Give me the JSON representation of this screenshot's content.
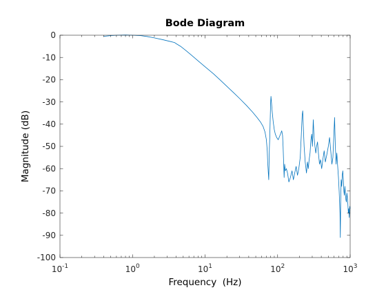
{
  "chart_data": {
    "type": "line",
    "title": "Bode Diagram",
    "xlabel": "Frequency  (Hz)",
    "ylabel": "Magnitude (dB)",
    "xscale": "log",
    "xlim": [
      0.1,
      1000
    ],
    "ylim": [
      -100,
      0
    ],
    "grid": false,
    "box": true,
    "x_ticks": [
      {
        "value": 0.1,
        "base": "10",
        "exp": "-1"
      },
      {
        "value": 1,
        "base": "10",
        "exp": "0"
      },
      {
        "value": 10,
        "base": "10",
        "exp": "1"
      },
      {
        "value": 100,
        "base": "10",
        "exp": "2"
      },
      {
        "value": 1000,
        "base": "10",
        "exp": "3"
      }
    ],
    "y_ticks": [
      0,
      -10,
      -20,
      -30,
      -40,
      -50,
      -60,
      -70,
      -80,
      -90,
      -100
    ],
    "y_tick_labels": [
      "0",
      "-10",
      "-20",
      "-30",
      "-40",
      "-50",
      "-60",
      "-70",
      "-80",
      "-90",
      "-100"
    ],
    "series": [
      {
        "color": "#0072bd",
        "points": [
          [
            0.4,
            -0.5
          ],
          [
            0.5,
            -0.2
          ],
          [
            0.6,
            0.0
          ],
          [
            0.8,
            0.1
          ],
          [
            1.0,
            0.0
          ],
          [
            1.3,
            -0.2
          ],
          [
            1.6,
            -0.6
          ],
          [
            2.0,
            -1.2
          ],
          [
            2.6,
            -2.0
          ],
          [
            3.2,
            -2.7
          ],
          [
            3.8,
            -3.3
          ],
          [
            4.0,
            -3.8
          ],
          [
            4.6,
            -5.0
          ],
          [
            5.5,
            -7.0
          ],
          [
            6.5,
            -9.0
          ],
          [
            8.0,
            -11.5
          ],
          [
            10.0,
            -14.2
          ],
          [
            13.0,
            -17.3
          ],
          [
            16.0,
            -20.0
          ],
          [
            20.0,
            -23.0
          ],
          [
            25.0,
            -26.0
          ],
          [
            30.0,
            -28.5
          ],
          [
            37.0,
            -31.5
          ],
          [
            45.0,
            -34.5
          ],
          [
            52.0,
            -37.0
          ],
          [
            58.0,
            -39.0
          ],
          [
            63.0,
            -41.0
          ],
          [
            67.0,
            -43.5
          ],
          [
            70.0,
            -47.0
          ],
          [
            72.0,
            -52.0
          ],
          [
            73.0,
            -57.0
          ],
          [
            74.5,
            -62.0
          ],
          [
            75.5,
            -65.0
          ],
          [
            76.0,
            -60.0
          ],
          [
            77.0,
            -51.0
          ],
          [
            78.0,
            -46.0
          ],
          [
            79.0,
            -38.0
          ],
          [
            80.0,
            -31.0
          ],
          [
            81.0,
            -27.5
          ],
          [
            82.0,
            -29.5
          ],
          [
            84.0,
            -34.0
          ],
          [
            87.0,
            -39.0
          ],
          [
            90.0,
            -42.5
          ],
          [
            93.0,
            -44.5
          ],
          [
            97.0,
            -46.0
          ],
          [
            102.0,
            -47.0
          ],
          [
            108.0,
            -45.0
          ],
          [
            114.0,
            -43.0
          ],
          [
            117.0,
            -45.0
          ],
          [
            119.0,
            -50.0
          ],
          [
            121.0,
            -57.0
          ],
          [
            123.0,
            -64.0
          ],
          [
            125.0,
            -58.0
          ],
          [
            128.0,
            -61.0
          ],
          [
            132.0,
            -60.0
          ],
          [
            137.0,
            -62.0
          ],
          [
            143.0,
            -66.0
          ],
          [
            150.0,
            -64.0
          ],
          [
            158.0,
            -61.0
          ],
          [
            165.0,
            -65.0
          ],
          [
            172.0,
            -62.0
          ],
          [
            180.0,
            -59.0
          ],
          [
            188.0,
            -63.0
          ],
          [
            196.0,
            -60.0
          ],
          [
            205.0,
            -55.0
          ],
          [
            212.0,
            -45.0
          ],
          [
            218.0,
            -36.0
          ],
          [
            222.0,
            -34.0
          ],
          [
            226.0,
            -41.0
          ],
          [
            232.0,
            -50.0
          ],
          [
            240.0,
            -57.0
          ],
          [
            250.0,
            -62.0
          ],
          [
            258.0,
            -57.0
          ],
          [
            265.0,
            -60.0
          ],
          [
            272.0,
            -56.0
          ],
          [
            280.0,
            -53.0
          ],
          [
            288.0,
            -47.0
          ],
          [
            295.0,
            -44.5
          ],
          [
            302.0,
            -50.0
          ],
          [
            310.0,
            -38.0
          ],
          [
            318.0,
            -46.0
          ],
          [
            327.0,
            -50.0
          ],
          [
            336.0,
            -53.0
          ],
          [
            345.0,
            -50.0
          ],
          [
            355.0,
            -48.0
          ],
          [
            365.0,
            -53.0
          ],
          [
            378.0,
            -58.0
          ],
          [
            390.0,
            -56.0
          ],
          [
            405.0,
            -60.0
          ],
          [
            420.0,
            -56.0
          ],
          [
            438.0,
            -52.0
          ],
          [
            455.0,
            -57.0
          ],
          [
            475.0,
            -54.0
          ],
          [
            500.0,
            -50.0
          ],
          [
            520.0,
            -46.0
          ],
          [
            540.0,
            -52.0
          ],
          [
            560.0,
            -58.0
          ],
          [
            578.0,
            -55.0
          ],
          [
            595.0,
            -45.5
          ],
          [
            610.0,
            -37.0
          ],
          [
            625.0,
            -50.0
          ],
          [
            640.0,
            -58.0
          ],
          [
            655.0,
            -53.0
          ],
          [
            670.0,
            -58.0
          ],
          [
            690.0,
            -64.0
          ],
          [
            705.0,
            -70.0
          ],
          [
            715.0,
            -75.0
          ],
          [
            725.0,
            -80.0
          ],
          [
            732.0,
            -91.0
          ],
          [
            740.0,
            -75.0
          ],
          [
            752.0,
            -65.0
          ],
          [
            765.0,
            -68.0
          ],
          [
            778.0,
            -63.0
          ],
          [
            792.0,
            -61.0
          ],
          [
            805.0,
            -65.0
          ],
          [
            818.0,
            -70.0
          ],
          [
            832.0,
            -72.0
          ],
          [
            846.0,
            -68.0
          ],
          [
            860.0,
            -71.0
          ],
          [
            874.0,
            -74.0
          ],
          [
            888.0,
            -75.0
          ],
          [
            902.0,
            -71.0
          ],
          [
            916.0,
            -73.0
          ],
          [
            930.0,
            -76.0
          ],
          [
            944.0,
            -80.0
          ],
          [
            958.0,
            -78.0
          ],
          [
            972.0,
            -82.0
          ],
          [
            986.0,
            -77.0
          ],
          [
            1000.0,
            -78.0
          ]
        ]
      }
    ]
  }
}
